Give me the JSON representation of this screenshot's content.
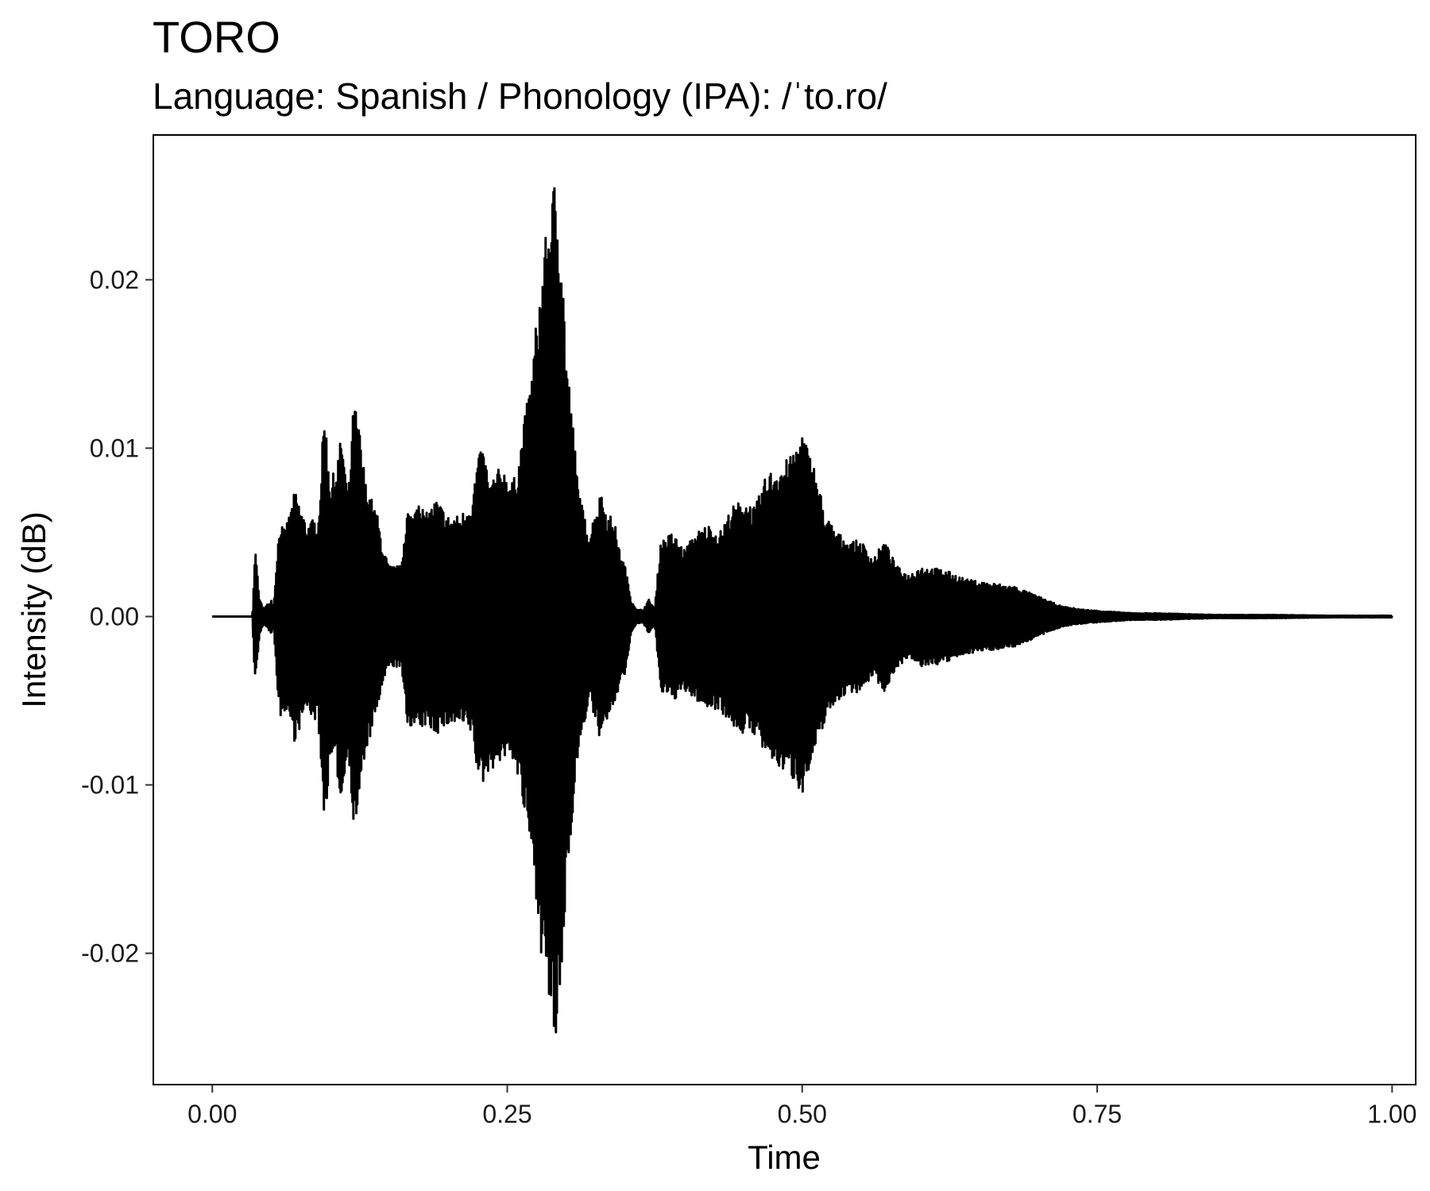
{
  "chart_data": {
    "type": "line",
    "title": "TORO",
    "subtitle": "Language: Spanish / Phonology (IPA): /ˈto.ro/",
    "xlabel": "Time",
    "ylabel": "Intensity (dB)",
    "xlim": [
      -0.05,
      1.02
    ],
    "ylim": [
      -0.0278,
      0.0286
    ],
    "x_ticks": [
      0.0,
      0.25,
      0.5,
      0.75,
      1.0
    ],
    "x_tick_labels": [
      "0.00",
      "0.25",
      "0.50",
      "0.75",
      "1.00"
    ],
    "y_ticks": [
      -0.02,
      -0.01,
      0.0,
      0.01,
      0.02
    ],
    "y_tick_labels": [
      "-0.02",
      "-0.01",
      "0.00",
      "0.01",
      "0.02"
    ],
    "grid": false,
    "legend": "none",
    "line_color": "#000000",
    "series": [
      {
        "envelope_x": [
          0.0,
          0.034,
          0.036,
          0.038,
          0.04,
          0.044,
          0.05,
          0.052,
          0.055,
          0.058,
          0.06,
          0.065,
          0.07,
          0.08,
          0.09,
          0.095,
          0.1,
          0.105,
          0.11,
          0.115,
          0.12,
          0.125,
          0.13,
          0.135,
          0.14,
          0.145,
          0.15,
          0.155,
          0.16,
          0.165,
          0.17,
          0.175,
          0.18,
          0.19,
          0.2,
          0.21,
          0.22,
          0.225,
          0.23,
          0.235,
          0.24,
          0.245,
          0.25,
          0.255,
          0.26,
          0.265,
          0.27,
          0.275,
          0.28,
          0.285,
          0.29,
          0.295,
          0.3,
          0.305,
          0.31,
          0.315,
          0.32,
          0.325,
          0.33,
          0.335,
          0.34,
          0.345,
          0.35,
          0.355,
          0.36,
          0.365,
          0.37,
          0.375,
          0.38,
          0.39,
          0.4,
          0.41,
          0.42,
          0.43,
          0.44,
          0.45,
          0.46,
          0.47,
          0.48,
          0.49,
          0.5,
          0.51,
          0.52,
          0.53,
          0.54,
          0.55,
          0.56,
          0.57,
          0.58,
          0.59,
          0.6,
          0.62,
          0.64,
          0.66,
          0.68,
          0.7,
          0.72,
          0.74,
          0.76,
          0.78,
          0.8,
          0.85,
          0.9,
          0.95,
          1.0
        ],
        "envelope_pos": [
          0.0,
          0.0,
          0.004,
          0.003,
          0.001,
          0.0005,
          0.001,
          0.0006,
          0.004,
          0.006,
          0.005,
          0.006,
          0.0075,
          0.0055,
          0.006,
          0.0125,
          0.008,
          0.009,
          0.011,
          0.007,
          0.013,
          0.011,
          0.008,
          0.007,
          0.006,
          0.004,
          0.003,
          0.003,
          0.003,
          0.0065,
          0.006,
          0.0075,
          0.006,
          0.007,
          0.006,
          0.006,
          0.007,
          0.0095,
          0.01,
          0.008,
          0.0085,
          0.009,
          0.0085,
          0.008,
          0.0095,
          0.012,
          0.014,
          0.018,
          0.021,
          0.024,
          0.026,
          0.024,
          0.016,
          0.012,
          0.008,
          0.006,
          0.005,
          0.0065,
          0.0075,
          0.006,
          0.006,
          0.004,
          0.003,
          0.001,
          0.0004,
          0.0004,
          0.001,
          0.0005,
          0.0045,
          0.005,
          0.004,
          0.005,
          0.0055,
          0.005,
          0.0065,
          0.007,
          0.0065,
          0.0085,
          0.009,
          0.0095,
          0.011,
          0.009,
          0.006,
          0.005,
          0.0045,
          0.0045,
          0.0035,
          0.0045,
          0.003,
          0.0025,
          0.003,
          0.0028,
          0.0022,
          0.002,
          0.0018,
          0.0012,
          0.0006,
          0.0004,
          0.0003,
          0.0002,
          0.0002,
          0.0001,
          0.0001,
          5e-05,
          5e-05
        ],
        "envelope_neg": [
          0.0,
          0.0,
          -0.0043,
          -0.003,
          -0.001,
          -0.0005,
          -0.001,
          -0.0006,
          -0.0043,
          -0.006,
          -0.0055,
          -0.006,
          -0.0075,
          -0.0055,
          -0.0065,
          -0.0125,
          -0.0085,
          -0.009,
          -0.0115,
          -0.0075,
          -0.013,
          -0.011,
          -0.008,
          -0.007,
          -0.0055,
          -0.004,
          -0.003,
          -0.003,
          -0.003,
          -0.0065,
          -0.0065,
          -0.007,
          -0.0065,
          -0.007,
          -0.0065,
          -0.0065,
          -0.007,
          -0.0095,
          -0.01,
          -0.009,
          -0.009,
          -0.0085,
          -0.0085,
          -0.0085,
          -0.01,
          -0.012,
          -0.014,
          -0.017,
          -0.021,
          -0.023,
          -0.026,
          -0.024,
          -0.016,
          -0.012,
          -0.0085,
          -0.0065,
          -0.005,
          -0.0065,
          -0.0075,
          -0.006,
          -0.006,
          -0.004,
          -0.0035,
          -0.001,
          -0.0004,
          -0.0004,
          -0.001,
          -0.0005,
          -0.0045,
          -0.005,
          -0.0045,
          -0.005,
          -0.0055,
          -0.0055,
          -0.0065,
          -0.007,
          -0.007,
          -0.0085,
          -0.009,
          -0.0095,
          -0.0105,
          -0.0085,
          -0.006,
          -0.005,
          -0.0045,
          -0.0045,
          -0.0035,
          -0.0045,
          -0.003,
          -0.0025,
          -0.003,
          -0.0028,
          -0.0022,
          -0.002,
          -0.0018,
          -0.0012,
          -0.0006,
          -0.0004,
          -0.0003,
          -0.0002,
          -0.0002,
          -0.0001,
          -0.0001,
          -5e-05,
          -5e-05
        ]
      }
    ]
  }
}
